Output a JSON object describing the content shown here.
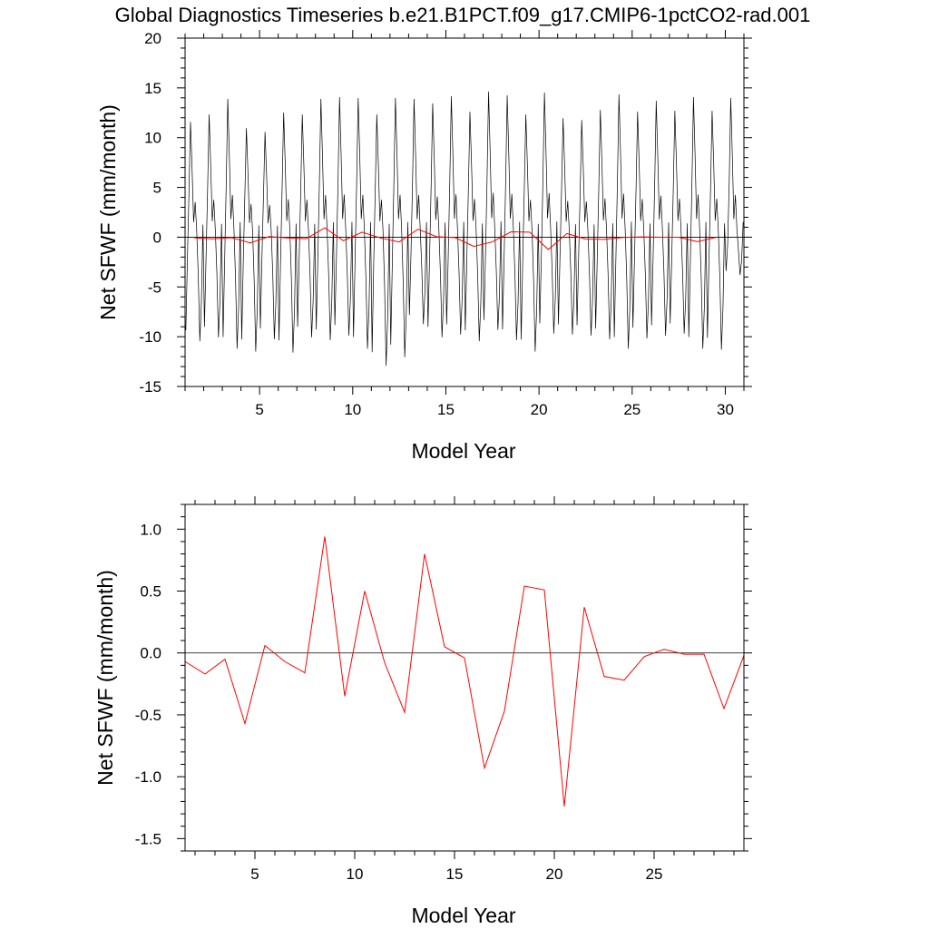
{
  "title": "Global Diagnostics Timeseries b.e21.B1PCT.f09_g17.CMIP6-1pctCO2-rad.001",
  "colors": {
    "monthly": "#000000",
    "annual": "#ff0000",
    "zero_line": "#000000"
  },
  "chart_data": [
    {
      "type": "line",
      "panel": "top",
      "xlabel": "Model Year",
      "ylabel": "Net SFWF (mm/month)",
      "xlim": [
        1.0,
        31.0
      ],
      "ylim": [
        -15,
        20
      ],
      "xticks": [
        5,
        10,
        15,
        20,
        25,
        30
      ],
      "xtick_labels": [
        "5",
        "10",
        "15",
        "20",
        "25",
        "30"
      ],
      "yticks": [
        -15,
        -10,
        -5,
        0,
        5,
        10,
        15,
        20
      ],
      "ytick_labels": [
        "-15",
        "-10",
        "-5",
        "0",
        "5",
        "10",
        "15",
        "20"
      ],
      "reference_line": 0,
      "monthly_envelope": {
        "peaks": [
          12.6,
          13.4,
          15.1,
          11.9,
          11.5,
          13.6,
          13.4,
          15.1,
          15.3,
          15.2,
          13.4,
          15.2,
          15.1,
          14.6,
          15.4,
          13.7,
          15.9,
          15.5,
          13.4,
          15.8,
          13.0,
          12.8,
          13.9,
          15.6,
          13.7,
          14.9,
          13.8,
          15.3,
          13.8,
          15.2
        ],
        "troughs": [
          -11.0,
          -10.6,
          -11.8,
          -12.1,
          -10.8,
          -12.2,
          -10.6,
          -10.9,
          -10.4,
          -11.8,
          -13.6,
          -12.7,
          -9.2,
          -10.6,
          -10.3,
          -11.0,
          -9.8,
          -10.9,
          -12.1,
          -10.2,
          -10.3,
          -10.4,
          -10.8,
          -11.8,
          -10.7,
          -10.4,
          -10.2,
          -11.8,
          -11.9,
          -4.0
        ]
      },
      "series": [
        {
          "color": "#ff0000",
          "x": [
            1.5,
            2.5,
            3.5,
            4.5,
            5.5,
            6.5,
            7.5,
            8.5,
            9.5,
            10.5,
            11.5,
            12.5,
            13.5,
            14.5,
            15.5,
            16.5,
            17.5,
            18.5,
            19.5,
            20.5,
            21.5,
            22.5,
            23.5,
            24.5,
            25.5,
            26.5,
            27.5,
            28.5,
            29.5
          ],
          "values": [
            -0.07,
            -0.17,
            -0.05,
            -0.57,
            0.06,
            -0.07,
            -0.16,
            0.94,
            -0.35,
            0.5,
            -0.08,
            -0.48,
            0.8,
            0.05,
            -0.04,
            -0.93,
            -0.47,
            0.54,
            0.51,
            -1.24,
            0.37,
            -0.19,
            -0.22,
            -0.03,
            0.03,
            -0.01,
            -0.01,
            -0.45,
            -0.02
          ]
        }
      ]
    },
    {
      "type": "line",
      "panel": "bottom",
      "xlabel": "Model Year",
      "ylabel": "Net SFWF (mm/month)",
      "xlim": [
        1.5,
        29.5
      ],
      "ylim": [
        -1.6,
        1.2
      ],
      "xticks": [
        5,
        10,
        15,
        20,
        25
      ],
      "xtick_labels": [
        "5",
        "10",
        "15",
        "20",
        "25"
      ],
      "yticks": [
        -1.5,
        -1.0,
        -0.5,
        0.0,
        0.5,
        1.0
      ],
      "ytick_labels": [
        "-1.5",
        "-1.0",
        "-0.5",
        "0.0",
        "0.5",
        "1.0"
      ],
      "reference_line": 0,
      "series": [
        {
          "color": "#ff0000",
          "x": [
            1.5,
            2.5,
            3.5,
            4.5,
            5.5,
            6.5,
            7.5,
            8.5,
            9.5,
            10.5,
            11.5,
            12.5,
            13.5,
            14.5,
            15.5,
            16.5,
            17.5,
            18.5,
            19.5,
            20.5,
            21.5,
            22.5,
            23.5,
            24.5,
            25.5,
            26.5,
            27.5,
            28.5,
            29.5
          ],
          "values": [
            -0.07,
            -0.17,
            -0.05,
            -0.57,
            0.06,
            -0.07,
            -0.16,
            0.94,
            -0.35,
            0.5,
            -0.08,
            -0.48,
            0.8,
            0.05,
            -0.04,
            -0.93,
            -0.47,
            0.54,
            0.51,
            -1.24,
            0.37,
            -0.19,
            -0.22,
            -0.03,
            0.03,
            -0.01,
            -0.01,
            -0.45,
            -0.02
          ]
        }
      ]
    }
  ]
}
